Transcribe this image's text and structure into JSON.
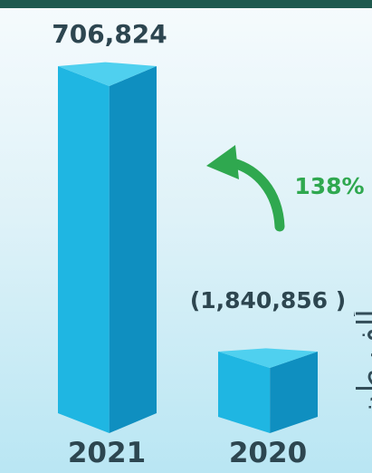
{
  "colors": {
    "top_band": "#1f5a4f",
    "bar_front": "#1fb6e2",
    "bar_side": "#0f8fc0",
    "bar_top": "#4fd0ef",
    "arrow": "#2fa84f",
    "text_dark": "#2d4650",
    "percent": "#2fa84f"
  },
  "chart_data": {
    "type": "bar",
    "categories": [
      "2021",
      "2020"
    ],
    "values": [
      706824,
      1840856
    ],
    "value_labels": [
      "706,824",
      "(1,840,856 )"
    ],
    "percent_change": "138%",
    "ylim": [
      0,
      1900000
    ]
  },
  "side_text": "ألف طن"
}
